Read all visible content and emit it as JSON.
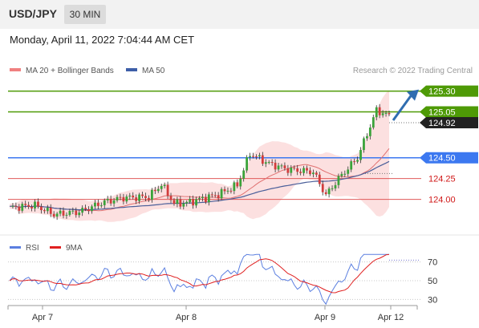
{
  "header": {
    "symbol": "USD/JPY",
    "timeframe": "30 MIN"
  },
  "timestamp": "Monday, April 11, 2022 7:04:44 AM CET",
  "credit": "Research © 2022 Trading Central",
  "colors": {
    "bullish_candle": "#3aa33a",
    "bearish_candle": "#d23c3c",
    "resistance": "#4e9a06",
    "support_strong": "#3c78f0",
    "support": "#e05a5a",
    "bollinger_fill": "#fbdada",
    "ma20": "#e07070",
    "ma50": "#4a5f9a",
    "rsi": "#5b7fe0",
    "rsi_ma": "#e02020",
    "arrow": "#2f6db0"
  },
  "chart_data": [
    {
      "type": "candlestick",
      "title": "USD/JPY",
      "legend": [
        {
          "name": "MA 20 + Bollinger Bands",
          "color": "#f08080"
        },
        {
          "name": "MA 50",
          "color": "#3d5ea8"
        }
      ],
      "x_labels": [
        "Apr 7",
        "Apr 8",
        "Apr 9",
        "Apr 12"
      ],
      "ylim": [
        123.65,
        125.45
      ],
      "levels": [
        {
          "value": 125.3,
          "label": "125.30",
          "kind": "resistance"
        },
        {
          "value": 125.05,
          "label": "125.05",
          "kind": "resistance"
        },
        {
          "value": 124.5,
          "label": "124.50",
          "kind": "pivot"
        },
        {
          "value": 124.25,
          "label": "124.25",
          "kind": "support"
        },
        {
          "value": 124.0,
          "label": "124.00",
          "kind": "support"
        }
      ],
      "last_price": {
        "value": 124.92,
        "label": "124.92"
      },
      "forecast": {
        "from": 124.95,
        "to": 125.3,
        "direction": "up"
      }
    },
    {
      "type": "line",
      "title": "RSI",
      "series": [
        {
          "name": "RSI",
          "color": "#5b7fe0"
        },
        {
          "name": "9MA",
          "color": "#e02020"
        }
      ],
      "y_ticks": [
        70,
        50,
        30
      ],
      "ylim": [
        20,
        80
      ],
      "last_value": 72
    }
  ]
}
